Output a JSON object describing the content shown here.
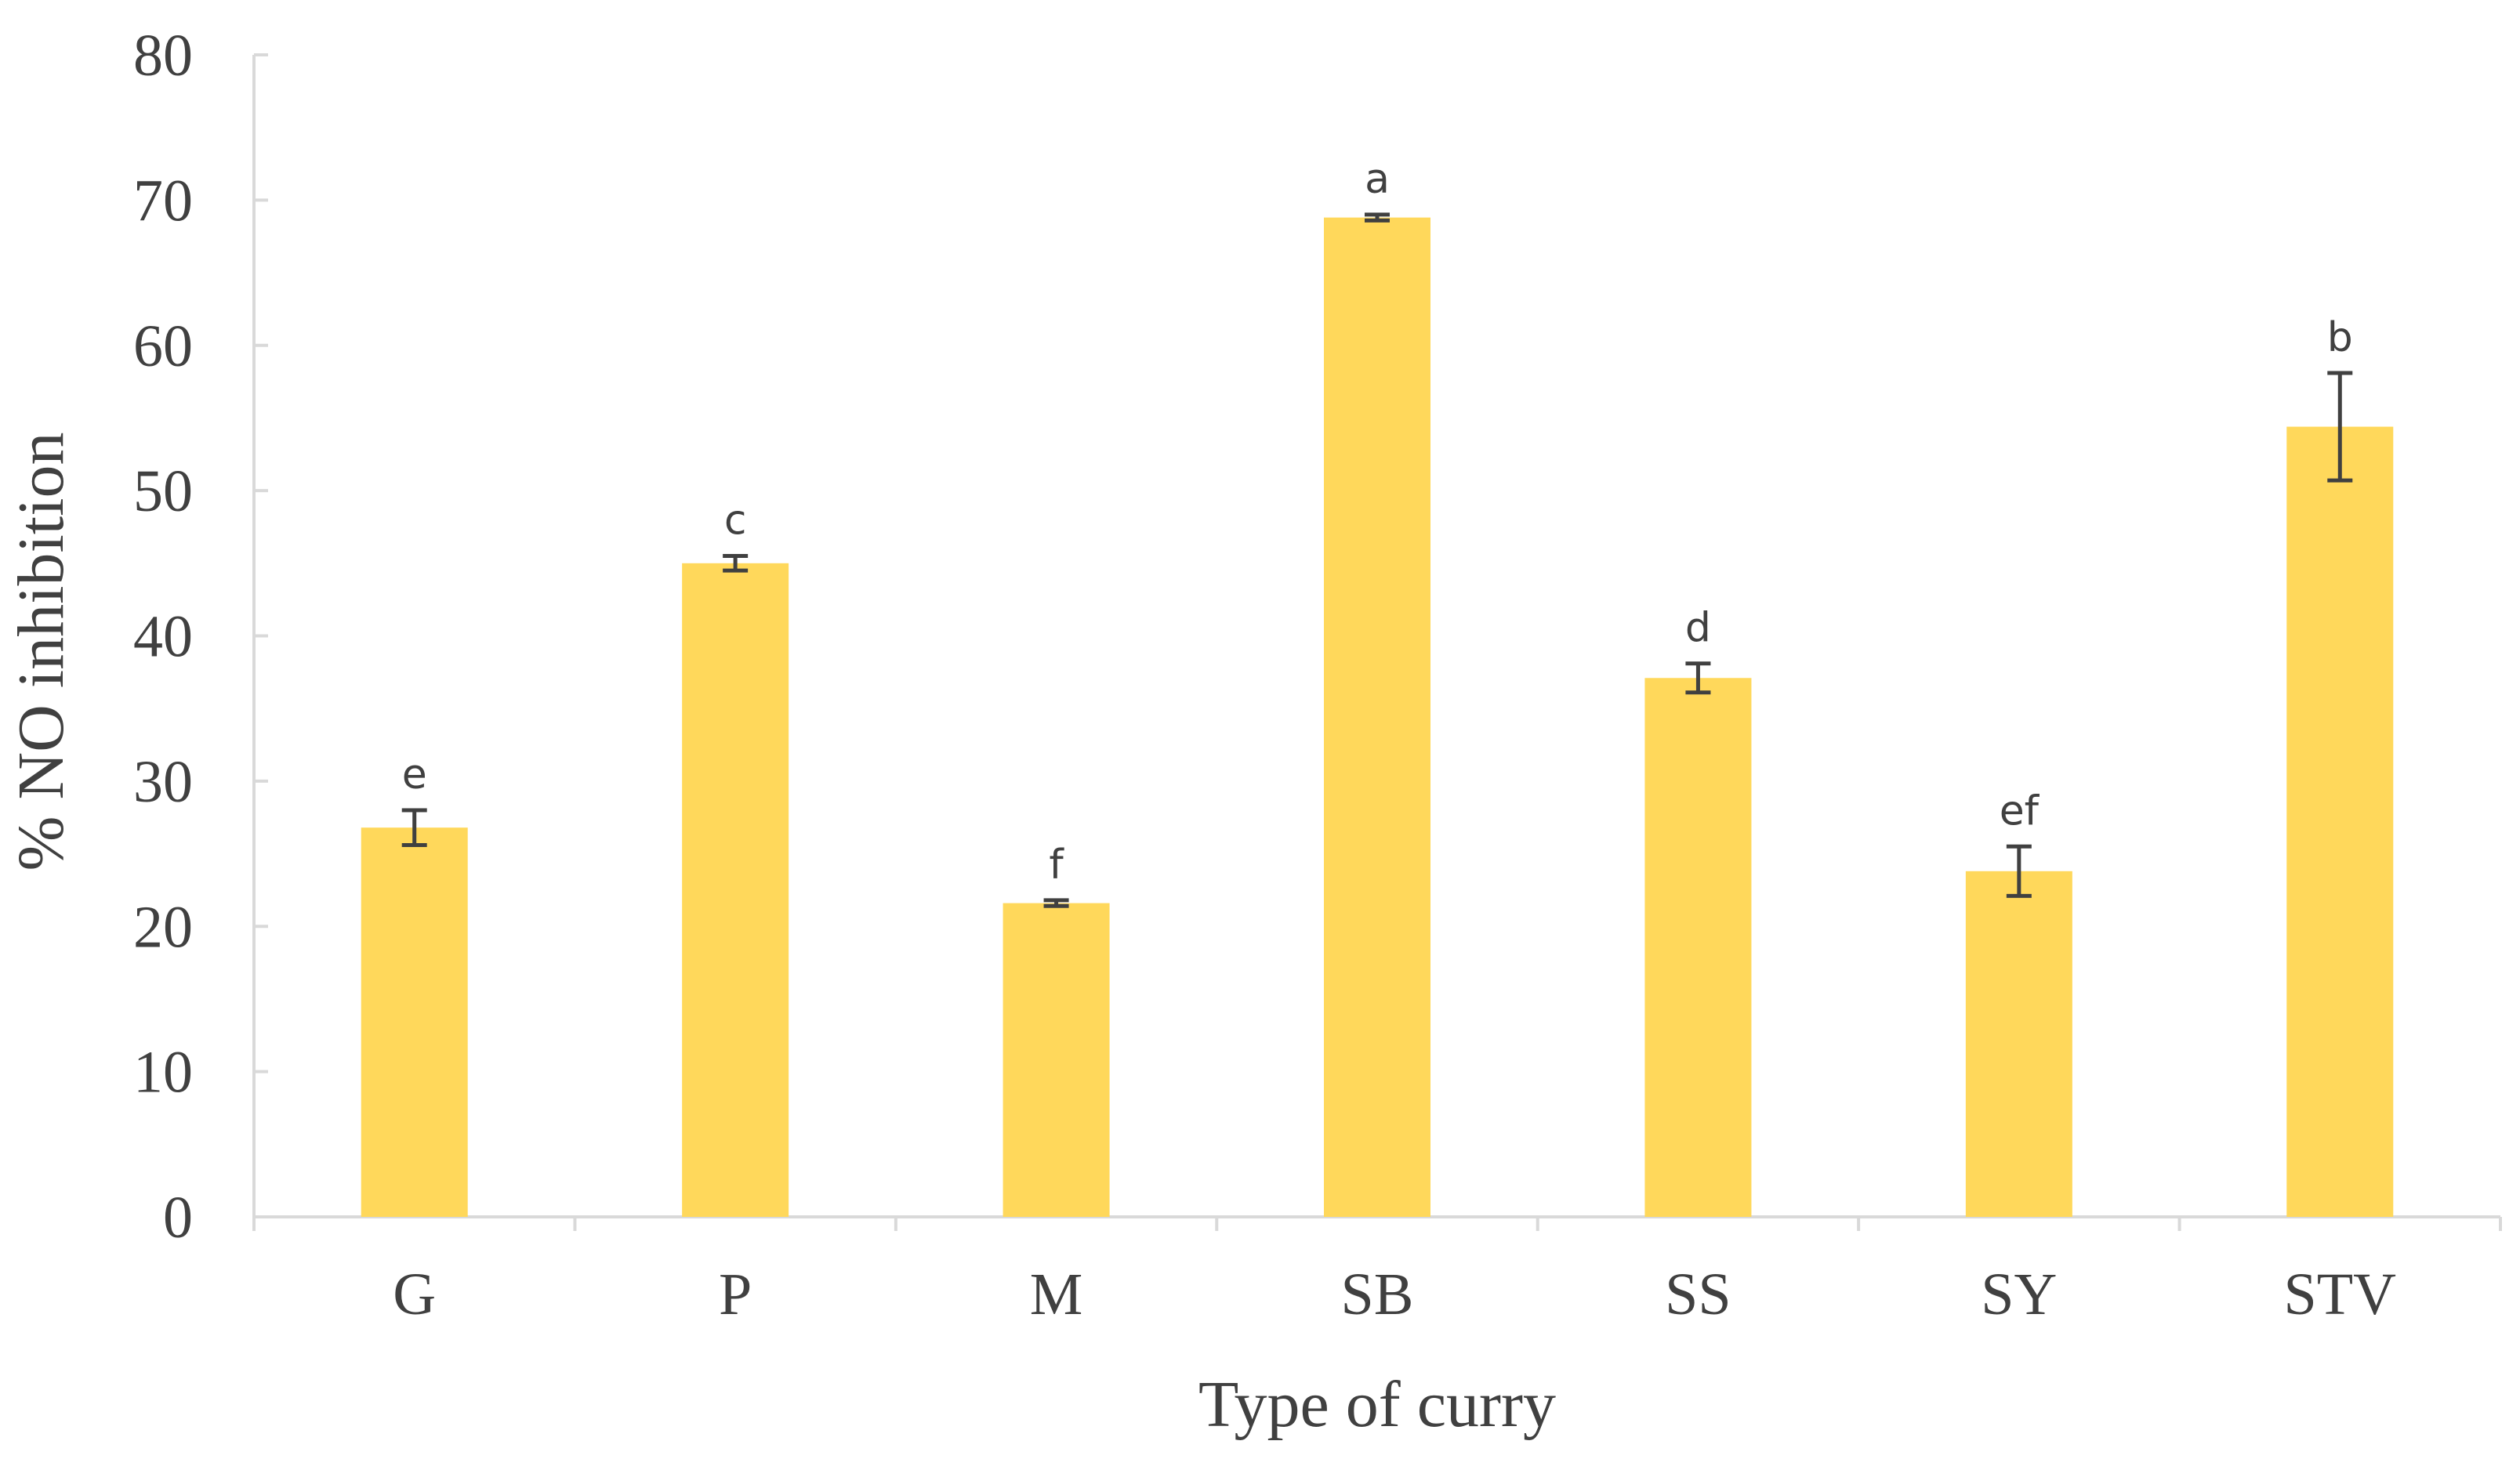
{
  "chart_data": {
    "type": "bar",
    "title": "",
    "xlabel": "Type of curry",
    "ylabel": "% NO inhibition",
    "ylim": [
      0,
      80
    ],
    "yticks": [
      0,
      10,
      20,
      30,
      40,
      50,
      60,
      70,
      80
    ],
    "grid": false,
    "categories": [
      "G",
      "P",
      "M",
      "SB",
      "SS",
      "SY",
      "STV"
    ],
    "series": [
      {
        "values": [
          26.8,
          45.0,
          21.6,
          68.8,
          37.1,
          23.8,
          54.4
        ],
        "errors": [
          1.2,
          0.5,
          0.2,
          0.2,
          1.0,
          1.7,
          3.7
        ],
        "significance_labels": [
          "e",
          "c",
          "f",
          "a",
          "d",
          "ef",
          "b"
        ]
      }
    ],
    "colors": {
      "bar": "#FFD85B",
      "error_bar": "#404040",
      "axis": "#D9D9D9",
      "text": "#404040"
    }
  }
}
